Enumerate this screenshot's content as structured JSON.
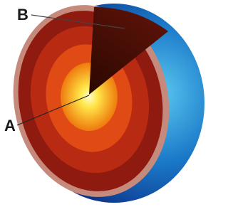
{
  "labels": [
    {
      "text": "B"
    },
    {
      "text": "A"
    }
  ]
}
